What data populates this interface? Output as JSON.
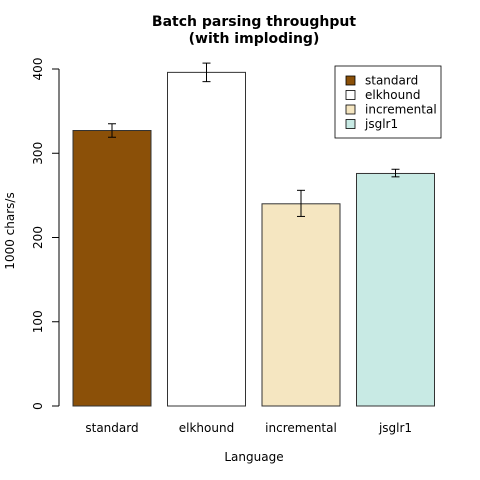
{
  "chart_data": {
    "type": "bar",
    "title_lines": [
      "Batch parsing throughput",
      "(with imploding)"
    ],
    "xlabel": "Language",
    "ylabel": "1000 chars/s",
    "categories": [
      "standard",
      "elkhound",
      "incremental",
      "jsglr1"
    ],
    "values": [
      327,
      396,
      240,
      276
    ],
    "error_low": [
      319,
      385,
      225,
      272
    ],
    "error_high": [
      335,
      407,
      256,
      281
    ],
    "colors": [
      "#8b5008",
      "#ffffff",
      "#f5e6c1",
      "#c8eae4"
    ],
    "ylim": [
      0,
      400
    ],
    "yticks": [
      "0",
      "100",
      "200",
      "300",
      "400"
    ],
    "grid": false,
    "legend_position": "top-right",
    "legend": [
      "standard",
      "elkhound",
      "incremental",
      "jsglr1"
    ]
  }
}
